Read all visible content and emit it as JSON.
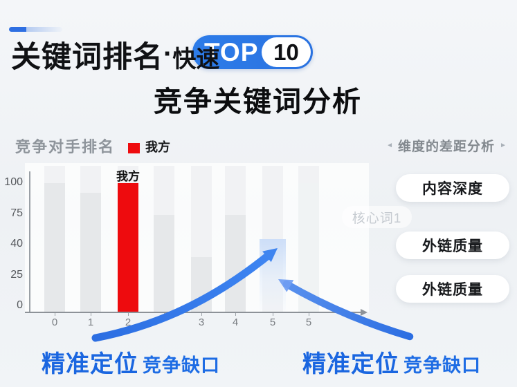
{
  "header": {
    "title_main": "关键词排名",
    "title_dot": "·",
    "title_sub": "快速",
    "badge": {
      "label": "TOP",
      "count": "10",
      "bg": "#2b78e6"
    },
    "subtitle": "竞争关键词分析"
  },
  "chart": {
    "label": "竞争对手排名",
    "legend_label": "我方"
  },
  "chart_data": {
    "type": "bar",
    "title": "竞争对手排名",
    "legend": [
      {
        "label": "我方",
        "color": "#ee0b0e"
      }
    ],
    "legend_position": "top",
    "grid": false,
    "ylim": [
      0,
      100
    ],
    "y_tick_labels": [
      "100",
      "75",
      "40",
      "25",
      "0"
    ],
    "y_scale_note": "tick labels evenly spaced on axis (non-linear value scale)",
    "x_tick_labels": [
      "0",
      "1",
      "2",
      "",
      "3",
      "4",
      "5",
      "5",
      ""
    ],
    "bars": [
      {
        "x": "0",
        "value": 100,
        "kind": "competitor"
      },
      {
        "x": "1",
        "value": 92,
        "kind": "competitor"
      },
      {
        "x": "2",
        "value": 100,
        "kind": "self",
        "label": "我方"
      },
      {
        "x": "",
        "value": 74,
        "kind": "competitor"
      },
      {
        "x": "3",
        "value": 34,
        "kind": "competitor"
      },
      {
        "x": "4",
        "value": 74,
        "kind": "competitor"
      },
      {
        "x": "5",
        "value": 46,
        "kind": "gap-highlight"
      },
      {
        "x": "5",
        "value": 100,
        "kind": "competitor-faint"
      }
    ]
  },
  "annotations": {
    "faded_chip": "核心词1",
    "callout_left": {
      "strong": "精准定位",
      "rest": "竞争缺口"
    },
    "callout_right": {
      "strong": "精准定位",
      "rest": "竞争缺口"
    }
  },
  "panel": {
    "header": "维度的差距分析",
    "prev_icon": "◄",
    "next_icon": "►",
    "items": [
      "内容深度",
      "外链质量",
      "外链质量"
    ]
  },
  "colors": {
    "accent_blue": "#2b78e6",
    "self_red": "#ee0b0e",
    "callout_blue": "#1b67e0",
    "arrow_blue": "#2f76e8",
    "bar_gray": "#e6e8ea"
  }
}
